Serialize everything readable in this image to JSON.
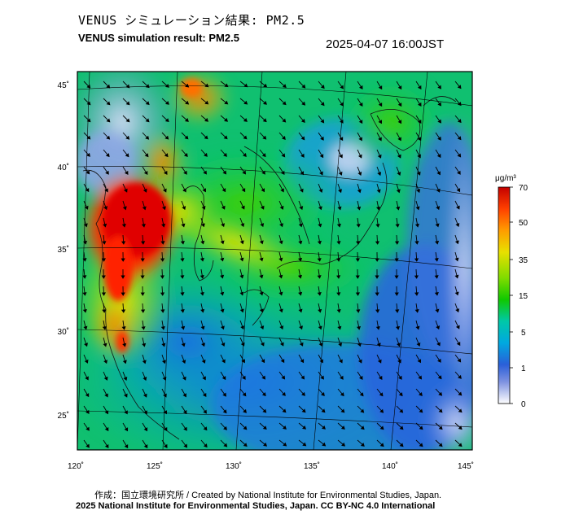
{
  "header": {
    "title_jp": "VENUS シミュレーション結果: PM2.5",
    "title_en": "VENUS simulation result: PM2.5",
    "timestamp": "2025-04-07 16:00JST"
  },
  "map": {
    "lon_ticks": [
      "120˚",
      "125˚",
      "130˚",
      "135˚",
      "140˚",
      "145˚"
    ],
    "lat_ticks": [
      "45˚",
      "40˚",
      "35˚",
      "30˚",
      "25˚"
    ]
  },
  "colorbar": {
    "unit": "μg/m³",
    "labels": [
      "70",
      "50",
      "35",
      "15",
      "5",
      "1",
      "0"
    ],
    "colors": [
      "#d90000",
      "#ff5a00",
      "#ffb000",
      "#e6e600",
      "#8fdc00",
      "#20c800",
      "#00c8a0",
      "#00a0d8",
      "#2a5fd8",
      "#6f86dc",
      "#b9c2ec",
      "#ffffff"
    ]
  },
  "footer": {
    "credit": "作成：国立環境研究所 / Created by National Institute for Environmental Studies, Japan.",
    "license": "2025 National Institute for Environmental Studies, Japan. CC BY-NC 4.0 International"
  }
}
